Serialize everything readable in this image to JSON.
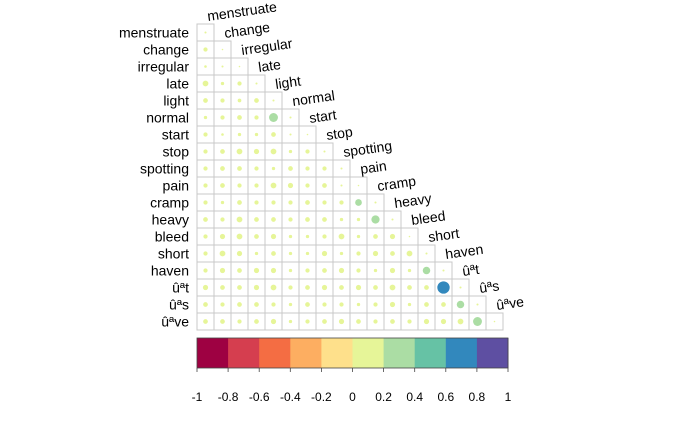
{
  "chart_data": {
    "type": "heatmap",
    "variables": [
      "menstruate",
      "change",
      "irregular",
      "late",
      "light",
      "normal",
      "start",
      "stop",
      "spotting",
      "pain",
      "cramp",
      "heavy",
      "bleed",
      "short",
      "haven",
      "ûªt",
      "ûªs",
      "ûªve"
    ],
    "matrix_shape": "lower-triangular",
    "values": [
      [
        0.02
      ],
      [
        0.08,
        0.01
      ],
      [
        0.03,
        0.02,
        0.01
      ],
      [
        0.15,
        0.05,
        0.08,
        0.02
      ],
      [
        0.1,
        0.08,
        0.06,
        0.1,
        0.02
      ],
      [
        0.05,
        0.08,
        0.1,
        0.08,
        0.35,
        0.02
      ],
      [
        0.08,
        0.03,
        0.05,
        0.05,
        0.1,
        0.02,
        0.01
      ],
      [
        0.08,
        0.1,
        0.15,
        0.12,
        0.15,
        0.05,
        0.08,
        0.02
      ],
      [
        0.08,
        0.1,
        0.1,
        0.08,
        0.05,
        0.1,
        0.08,
        0.08,
        0.02
      ],
      [
        0.08,
        0.1,
        0.08,
        0.08,
        0.15,
        0.12,
        0.08,
        0.1,
        0.02,
        0.01
      ],
      [
        0.08,
        0.05,
        0.1,
        0.08,
        0.08,
        0.08,
        0.1,
        0.08,
        0.08,
        0.2,
        0.02
      ],
      [
        0.1,
        0.08,
        0.15,
        0.1,
        0.1,
        0.08,
        0.1,
        0.1,
        0.05,
        0.05,
        0.3,
        0.02
      ],
      [
        0.08,
        0.12,
        0.15,
        0.1,
        0.12,
        0.05,
        0.05,
        0.08,
        0.15,
        0.05,
        0.1,
        0.12,
        0.01
      ],
      [
        0.08,
        0.15,
        0.12,
        0.05,
        0.1,
        0.05,
        0.05,
        0.12,
        0.05,
        0.08,
        0.12,
        0.1,
        0.15,
        0.02
      ],
      [
        0.08,
        0.12,
        0.1,
        0.12,
        0.12,
        0.05,
        0.08,
        0.1,
        0.12,
        0.08,
        0.05,
        0.12,
        0.05,
        0.25,
        0.02
      ],
      [
        0.12,
        0.1,
        0.1,
        0.12,
        0.15,
        0.08,
        0.1,
        0.12,
        0.1,
        0.12,
        0.1,
        0.15,
        0.1,
        0.1,
        0.68,
        0.02
      ],
      [
        0.1,
        0.08,
        0.1,
        0.1,
        0.08,
        0.05,
        0.1,
        0.08,
        0.08,
        0.05,
        0.08,
        0.12,
        0.05,
        0.1,
        0.1,
        0.25,
        0.02
      ],
      [
        0.1,
        0.1,
        0.08,
        0.1,
        0.12,
        0.05,
        0.08,
        0.1,
        0.12,
        0.1,
        0.08,
        0.1,
        0.08,
        0.12,
        0.12,
        0.15,
        0.35,
        0.01
      ]
    ],
    "colorbar": {
      "range": [
        -1,
        1
      ],
      "ticks": [
        "-1",
        "-0.8",
        "-0.6",
        "-0.4",
        "-0.2",
        "0",
        "0.2",
        "0.4",
        "0.6",
        "0.8",
        "1"
      ],
      "colors": [
        "#9e0142",
        "#d53e4f",
        "#f46d43",
        "#fdae61",
        "#fee08b",
        "#e6f598",
        "#abdda4",
        "#66c2a5",
        "#3288bd",
        "#5e4fa2"
      ]
    },
    "grid": true,
    "legend": "bottom"
  }
}
